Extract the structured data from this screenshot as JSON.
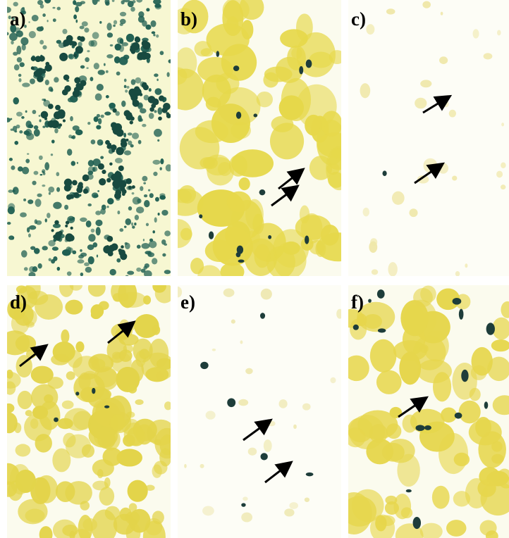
{
  "panels": [
    {
      "label": "a)"
    },
    {
      "label": "b)"
    },
    {
      "label": "c)"
    },
    {
      "label": "d)"
    },
    {
      "label": "e)"
    },
    {
      "label": "f)"
    }
  ]
}
